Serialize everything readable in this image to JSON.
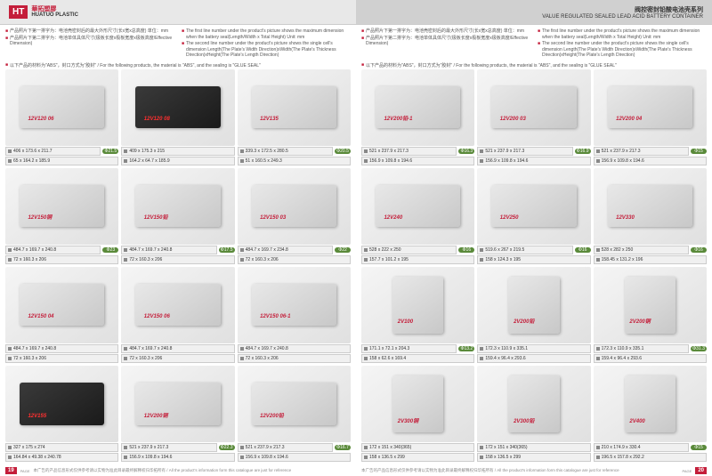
{
  "header": {
    "logo_badge": "HT",
    "logo_cn": "華拓塑膠",
    "logo_en": "HUATUO PLASTIC",
    "title_cn": "阀控密封铅酸电池壳系列",
    "title_en": "VALUE REGULATED SEALED LEAD ACID BATTERY CONTAINER"
  },
  "notes": {
    "left_cn1": "产品照片下第一排字为：电池壳密封后的最大外形尺寸(长x宽x总高度) 单位：mm",
    "left_cn2": "产品照片下第二排字为：电池单体具体尺寸(极板长度x极板宽度x极板高度/Effective Dimension)",
    "left_en1": "The first line number under the product's picture shows the maximum dimension when the battery seal(Length/Width x Total Height) Unit: mm",
    "left_en2": "The second line number under the product's picture shows the single cell's dimension Length(The Plate's Width Direction)xWidth(The Plate's Thickness Direction)xHeight(The Plate's Length Direction)",
    "material": "以下产品的材料为\"ABS\"，封口方式为\"胶封\" / For the following products, the material is \"ABS\", and the sealing is \"GLUE SEAL\""
  },
  "footer": {
    "page_left": "19",
    "page_right": "20",
    "page_label": "PAGE",
    "disclaimer": "本广告的产品信息形式仅供参考请以实物为准此目录最终解释权归华拓所有 / All the product's information form this catalogue are just for reference"
  },
  "left_products": [
    {
      "name": "12V120 06",
      "dim1": "406 x 173.6 x 211.7",
      "dim2": "65 x 164.2 x 185.9",
      "b1": "Φ21.5",
      "b2": "",
      "cls": ""
    },
    {
      "name": "12V120 08",
      "dim1": "409 x 175.3 x 215",
      "dim2": "164.2 x 64.7 x 185.9",
      "b1": "",
      "b2": "",
      "cls": "black"
    },
    {
      "name": "12V135",
      "dim1": "339.3 x 172.5 x 280.5",
      "dim2": "51 x 160.5 x 249.3",
      "b1": "Φ20.5",
      "b2": "",
      "cls": ""
    },
    {
      "name": "12V150铜",
      "dim1": "484.7 x 169.7 x 240.8",
      "dim2": "72 x 160.3 x 206",
      "b1": "Φ23",
      "b2": "",
      "cls": ""
    },
    {
      "name": "12V150铅",
      "dim1": "484.7 x 169.7 x 240.8",
      "dim2": "72 x 160.3 x 206",
      "b1": "Φ17.5",
      "b2": "",
      "cls": ""
    },
    {
      "name": "12V150 03",
      "dim1": "484.7 x 169.7 x 234.8",
      "dim2": "72 x 160.3 x 206",
      "b1": "Φ22",
      "b2": "",
      "cls": ""
    },
    {
      "name": "12V150 04",
      "dim1": "484.7 x 169.7 x 240.8",
      "dim2": "72 x 160.3 x 206",
      "b1": "",
      "b2": "",
      "cls": ""
    },
    {
      "name": "12V150 06",
      "dim1": "484.7 x 169.7 x 240.8",
      "dim2": "72 x 160.3 x 206",
      "b1": "",
      "b2": "",
      "cls": ""
    },
    {
      "name": "12V150 06-1",
      "dim1": "484.7 x 169.7 x 240.8",
      "dim2": "72 x 160.3 x 206",
      "b1": "",
      "b2": "",
      "cls": ""
    },
    {
      "name": "12V155",
      "dim1": "327 x 175 x 274",
      "dim2": "164.84 x 49.38 x 240.78",
      "b1": "",
      "b2": "",
      "cls": "black"
    },
    {
      "name": "12V200铜",
      "dim1": "521 x 237.9 x 217.3",
      "dim2": "156.9 x 109.8 x 194.6",
      "b1": "Φ22.3",
      "b2": "",
      "cls": ""
    },
    {
      "name": "12V200铅",
      "dim1": "521 x 237.9 x 217.3",
      "dim2": "156.9 x 109.8 x 194.6",
      "b1": "Φ16.7",
      "b2": "",
      "cls": ""
    }
  ],
  "right_products": [
    {
      "name": "12V200铅-1",
      "dim1": "521 x 237.9 x 217.3",
      "dim2": "156.9 x 109.8 x 194.6",
      "b1": "Φ16.3",
      "b2": "",
      "cls": ""
    },
    {
      "name": "12V200 03",
      "dim1": "521 x 237.9 x 217.3",
      "dim2": "156.9 x 109.8 x 194.6",
      "b1": "Φ16.9",
      "b2": "",
      "cls": ""
    },
    {
      "name": "12V200 04",
      "dim1": "521 x 237.9 x 217.3",
      "dim2": "156.9 x 109.8 x 194.6",
      "b1": "Φ15",
      "b2": "",
      "cls": ""
    },
    {
      "name": "12V240",
      "dim1": "528 x 222 x 250",
      "dim2": "157.7 x 101.2 x 195",
      "b1": "Φ16",
      "b2": "",
      "cls": ""
    },
    {
      "name": "12V250",
      "dim1": "519.6 x 267 x 219.5",
      "dim2": "158 x 124.3 x 195",
      "b1": "Φ16",
      "b2": "",
      "cls": ""
    },
    {
      "name": "12V330",
      "dim1": "528 x 282 x 250",
      "dim2": "158.45 x 131.2 x 196",
      "b1": "Φ16",
      "b2": "",
      "cls": ""
    },
    {
      "name": "2V100",
      "dim1": "171.1 x 72.1 x 204.3",
      "dim2": "158 x 62.6 x 169.4",
      "b1": "Φ13.2",
      "b2": "",
      "cls": "tall"
    },
    {
      "name": "2V200铅",
      "dim1": "172.3 x 110.9 x 335.1",
      "dim2": "159.4 x 96.4 x 293.6",
      "b1": "",
      "b2": "",
      "cls": "tall"
    },
    {
      "name": "2V200铜",
      "dim1": "172.3 x 110.9 x 335.1",
      "dim2": "159.4 x 96.4 x 293.6",
      "b1": "Φ31.3",
      "b2": "",
      "cls": "tall"
    },
    {
      "name": "2V300铜",
      "dim1": "172 x 151 x 340(365)",
      "dim2": "158 x 136.5 x 299",
      "b1": "",
      "b2": "",
      "cls": "tall"
    },
    {
      "name": "2V300铅",
      "dim1": "172 x 151 x 340(365)",
      "dim2": "158 x 136.5 x 299",
      "b1": "",
      "b2": "",
      "cls": "tall"
    },
    {
      "name": "2V400",
      "dim1": "210 x 174.9 x 330.4",
      "dim2": "196.5 x 157.8 x 292.2",
      "b1": "Φ15",
      "b2": "",
      "cls": "tall"
    }
  ]
}
